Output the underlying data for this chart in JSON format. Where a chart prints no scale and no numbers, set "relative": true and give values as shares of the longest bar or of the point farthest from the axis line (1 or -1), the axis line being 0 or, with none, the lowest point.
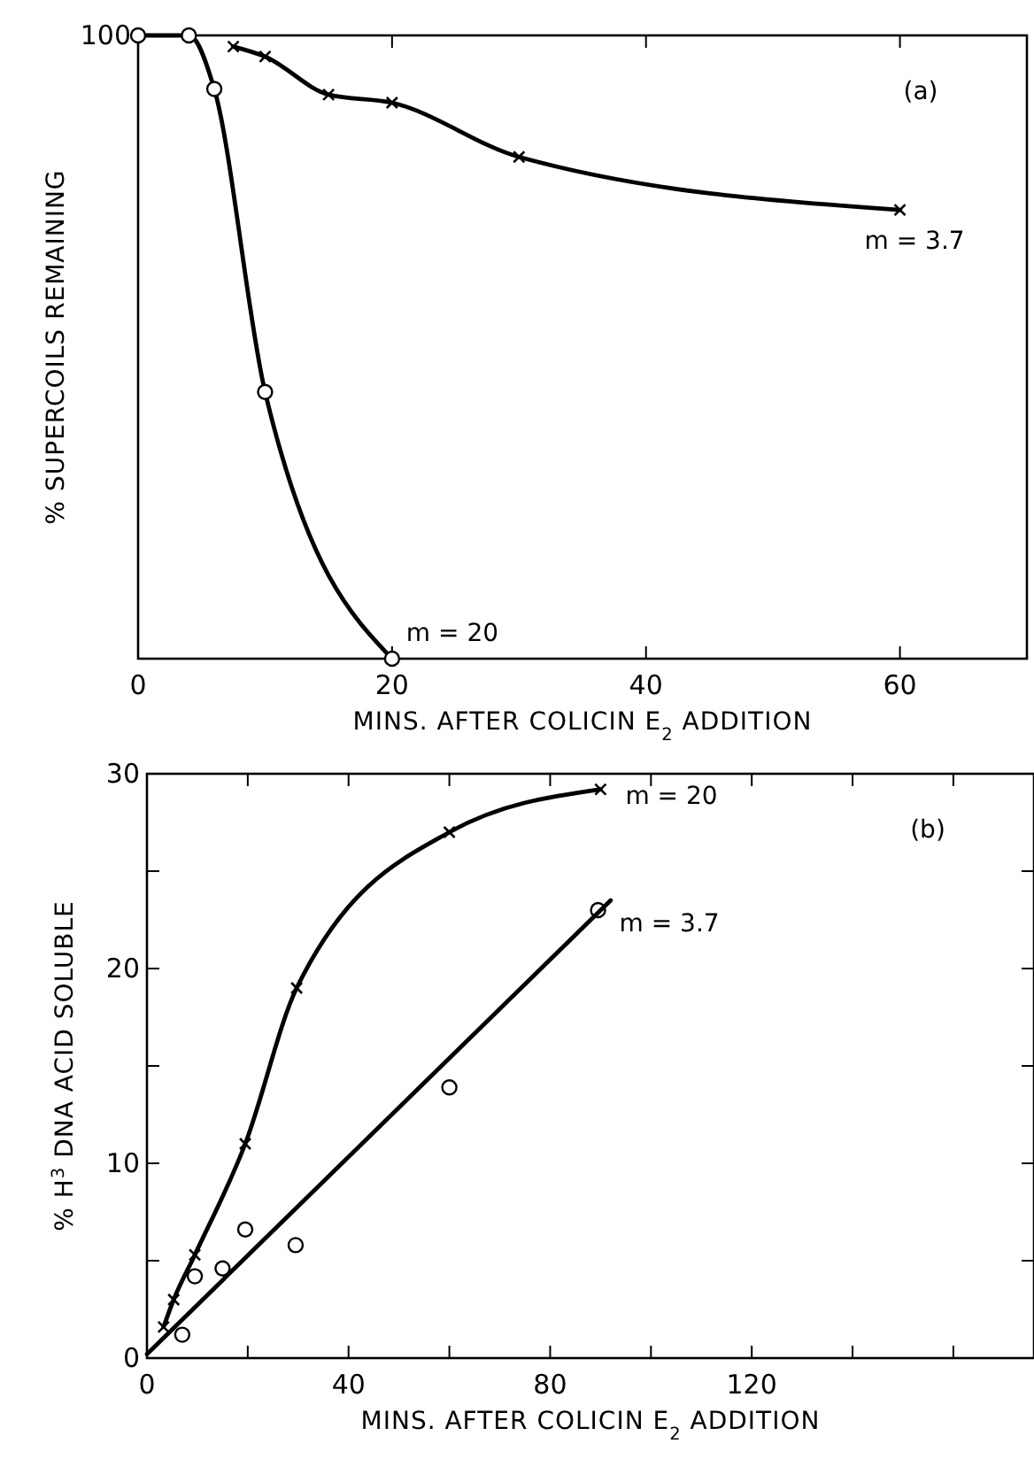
{
  "chart_data": [
    {
      "type": "line",
      "xlabel": "MINS. AFTER COLICIN E$_{2}$ ADDITION",
      "ylabel": "% SUPERCOILS REMAINING",
      "relative": true,
      "xlim": [
        0,
        70
      ],
      "xticks": [
        0,
        20,
        40,
        60
      ],
      "annotations": [
        "100",
        "(a)"
      ],
      "grid": false,
      "series": [
        {
          "name": "m = 3.7",
          "color": "#000000",
          "marker": "cross",
          "x": [
            7.5,
            10,
            15,
            20,
            30,
            60
          ],
          "values": [
            0.982,
            0.966,
            0.905,
            0.892,
            0.805,
            0.72
          ]
        },
        {
          "name": "m = 20",
          "color": "#000000",
          "marker": "circle",
          "x": [
            0,
            4,
            6,
            10,
            20
          ],
          "values": [
            1,
            1,
            0.914,
            0.428,
            0
          ]
        }
      ]
    },
    {
      "type": "line",
      "xlabel": "MINS. AFTER COLICIN E$_{2}$ ADDITION",
      "ylabel": "% H$^{3}$ DNA ACID SOLUBLE",
      "xlim": [
        0,
        176
      ],
      "xticks": [
        0,
        {
          "value": 20,
          "label": null
        },
        40,
        {
          "value": 60,
          "label": null
        },
        80,
        {
          "value": 100,
          "label": null
        },
        120,
        {
          "value": 140,
          "label": null
        },
        {
          "value": 160,
          "label": null
        }
      ],
      "ylim": [
        0,
        30
      ],
      "yticks": [
        0,
        {
          "value": 5,
          "label": null
        },
        10,
        {
          "value": 15,
          "label": null
        },
        20,
        {
          "value": 25,
          "label": null
        },
        30
      ],
      "annotations": [
        "(b)"
      ],
      "grid": false,
      "series": [
        {
          "name": "m = 20",
          "color": "#000000",
          "marker": "cross",
          "x": [
            3.3,
            5.3,
            9.5,
            19.5,
            29.7,
            60,
            90
          ],
          "values": [
            1.6,
            3,
            5.3,
            11,
            19,
            27,
            29.2
          ]
        },
        {
          "name": "m = 3.7",
          "color": "#000000",
          "type": "scatter",
          "marker": "circle",
          "x": [
            7,
            9.5,
            15,
            19.5,
            29.5,
            60,
            89.5
          ],
          "values": [
            1.2,
            4.2,
            4.6,
            6.6,
            5.8,
            13.9,
            23
          ]
        },
        {
          "type": "line",
          "color": "#000000",
          "marker": "none",
          "x": [
            0,
            92
          ],
          "values": [
            0.2,
            23.5
          ]
        }
      ]
    }
  ]
}
